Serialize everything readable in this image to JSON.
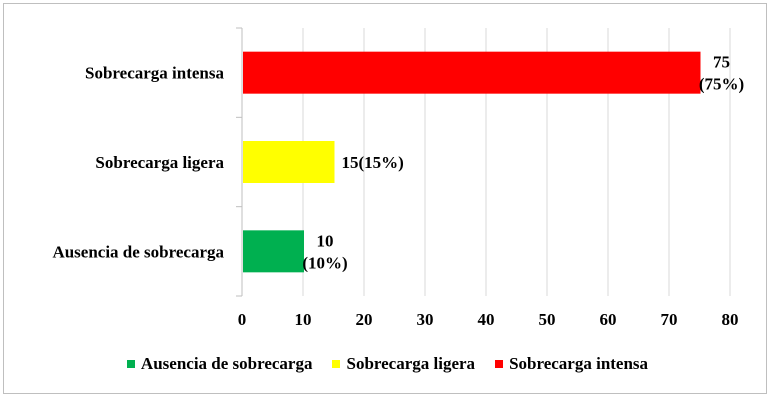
{
  "chart_data": {
    "type": "bar",
    "orientation": "horizontal",
    "categories": [
      "Ausencia de sobrecarga",
      "Sobrecarga ligera",
      "Sobrecarga intensa"
    ],
    "values": [
      10,
      15,
      75
    ],
    "data_labels": [
      [
        "10",
        "(10%)"
      ],
      [
        "15(15%)"
      ],
      [
        "75",
        "(75%)"
      ]
    ],
    "colors": [
      "#00b050",
      "#ffff00",
      "#ff0000"
    ],
    "xlim": [
      0,
      80
    ],
    "xticks": [
      "0",
      "10",
      "20",
      "30",
      "40",
      "50",
      "60",
      "70",
      "80"
    ],
    "grid": true,
    "legend": {
      "position": "bottom",
      "entries": [
        "Ausencia de sobrecarga",
        "Sobrecarga ligera",
        "Sobrecarga intensa"
      ]
    }
  }
}
